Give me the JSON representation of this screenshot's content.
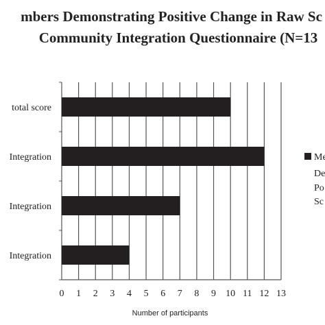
{
  "chart_data": {
    "type": "bar",
    "orientation": "horizontal",
    "title_lines": [
      "mbers Demonstrating Positive Change in Raw Sc",
      "Community Integration Questionnaire (N=13"
    ],
    "categories": [
      "total score",
      "Integration",
      "Integration",
      "Integration"
    ],
    "values": [
      10,
      12,
      7,
      4
    ],
    "xlabel": "Number of participants",
    "xlim": [
      0,
      13
    ],
    "xticks": [
      0,
      1,
      2,
      3,
      4,
      5,
      6,
      7,
      8,
      9,
      10,
      11,
      12,
      13
    ],
    "grid": true,
    "bar_color": "#231f20",
    "legend": {
      "placement": "right",
      "lines": [
        "Me",
        "De",
        "Po",
        "Sc"
      ]
    }
  }
}
